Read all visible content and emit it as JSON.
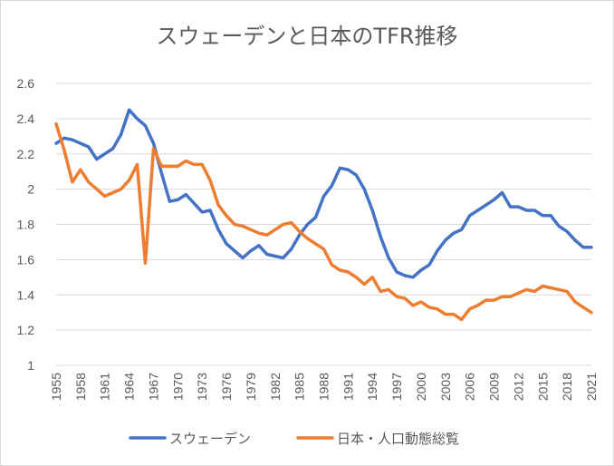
{
  "chart_data": {
    "type": "line",
    "title": "スウェーデンと日本のTFR推移",
    "xlabel": "",
    "ylabel": "",
    "x": [
      1955,
      1956,
      1957,
      1958,
      1959,
      1960,
      1961,
      1962,
      1963,
      1964,
      1965,
      1966,
      1967,
      1968,
      1969,
      1970,
      1971,
      1972,
      1973,
      1974,
      1975,
      1976,
      1977,
      1978,
      1979,
      1980,
      1981,
      1982,
      1983,
      1984,
      1985,
      1986,
      1987,
      1988,
      1989,
      1990,
      1991,
      1992,
      1993,
      1994,
      1995,
      1996,
      1997,
      1998,
      1999,
      2000,
      2001,
      2002,
      2003,
      2004,
      2005,
      2006,
      2007,
      2008,
      2009,
      2010,
      2011,
      2012,
      2013,
      2014,
      2015,
      2016,
      2017,
      2018,
      2019,
      2020,
      2021
    ],
    "xticks": [
      "1955",
      "1958",
      "1961",
      "1964",
      "1967",
      "1970",
      "1973",
      "1976",
      "1979",
      "1982",
      "1985",
      "1988",
      "1991",
      "1994",
      "1997",
      "2000",
      "2003",
      "2006",
      "2009",
      "2012",
      "2015",
      "2018",
      "2021"
    ],
    "yticks": [
      "1",
      "1.2",
      "1.4",
      "1.6",
      "1.8",
      "2",
      "2.2",
      "2.4",
      "2.6"
    ],
    "ylim": [
      1,
      2.6
    ],
    "grid": true,
    "legend_position": "bottom",
    "series": [
      {
        "name": "スウェーデン",
        "color": "#4472c4",
        "values": [
          2.26,
          2.29,
          2.28,
          2.26,
          2.24,
          2.17,
          2.2,
          2.23,
          2.31,
          2.45,
          2.4,
          2.36,
          2.26,
          2.09,
          1.93,
          1.94,
          1.97,
          1.92,
          1.87,
          1.88,
          1.77,
          1.69,
          1.65,
          1.61,
          1.65,
          1.68,
          1.63,
          1.62,
          1.61,
          1.66,
          1.74,
          1.8,
          1.84,
          1.96,
          2.02,
          2.12,
          2.11,
          2.08,
          2.0,
          1.88,
          1.73,
          1.61,
          1.53,
          1.51,
          1.5,
          1.54,
          1.57,
          1.65,
          1.71,
          1.75,
          1.77,
          1.85,
          1.88,
          1.91,
          1.94,
          1.98,
          1.9,
          1.9,
          1.88,
          1.88,
          1.85,
          1.85,
          1.79,
          1.76,
          1.71,
          1.67,
          1.67
        ]
      },
      {
        "name": "日本・人口動態総覧",
        "color": "#ed7d31",
        "values": [
          2.37,
          2.22,
          2.04,
          2.11,
          2.04,
          2.0,
          1.96,
          1.98,
          2.0,
          2.05,
          2.14,
          1.58,
          2.23,
          2.13,
          2.13,
          2.13,
          2.16,
          2.14,
          2.14,
          2.05,
          1.91,
          1.85,
          1.8,
          1.79,
          1.77,
          1.75,
          1.74,
          1.77,
          1.8,
          1.81,
          1.76,
          1.72,
          1.69,
          1.66,
          1.57,
          1.54,
          1.53,
          1.5,
          1.46,
          1.5,
          1.42,
          1.43,
          1.39,
          1.38,
          1.34,
          1.36,
          1.33,
          1.32,
          1.29,
          1.29,
          1.26,
          1.32,
          1.34,
          1.37,
          1.37,
          1.39,
          1.39,
          1.41,
          1.43,
          1.42,
          1.45,
          1.44,
          1.43,
          1.42,
          1.36,
          1.33,
          1.3
        ]
      }
    ]
  }
}
